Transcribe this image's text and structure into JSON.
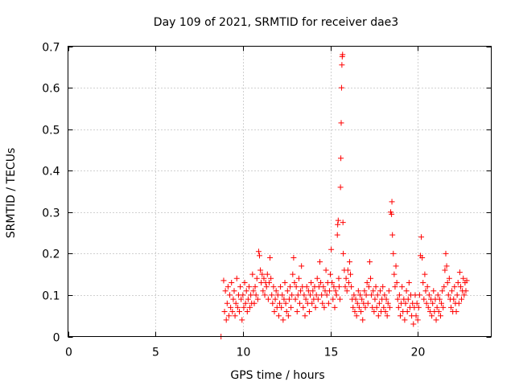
{
  "chart_data": {
    "type": "scatter",
    "title": "Day 109 of 2021, SRMTID for receiver dae3",
    "xlabel": "GPS time / hours",
    "ylabel": "SRMTID / TECUs",
    "xlim": [
      0,
      24.2
    ],
    "ylim": [
      0,
      0.7
    ],
    "x_ticks": [
      0,
      5,
      10,
      15,
      20
    ],
    "x_tick_labels": [
      "0",
      "5",
      "10",
      "15",
      "20"
    ],
    "y_ticks": [
      0,
      0.1,
      0.2,
      0.3,
      0.4,
      0.5,
      0.6,
      0.7
    ],
    "y_tick_labels": [
      "0",
      "0.1",
      "0.2",
      "0.3",
      "0.4",
      "0.5",
      "0.6",
      "0.7"
    ],
    "grid": true,
    "legend": "none",
    "marker": "+",
    "color": "#ff0000",
    "series": [
      {
        "name": "SRMTID",
        "points": [
          [
            8.75,
            0.0
          ],
          [
            8.9,
            0.135
          ],
          [
            8.95,
            0.06
          ],
          [
            9.0,
            0.11
          ],
          [
            9.05,
            0.04
          ],
          [
            9.1,
            0.08
          ],
          [
            9.15,
            0.12
          ],
          [
            9.2,
            0.05
          ],
          [
            9.25,
            0.1
          ],
          [
            9.3,
            0.07
          ],
          [
            9.35,
            0.13
          ],
          [
            9.4,
            0.06
          ],
          [
            9.45,
            0.09
          ],
          [
            9.5,
            0.11
          ],
          [
            9.55,
            0.05
          ],
          [
            9.6,
            0.08
          ],
          [
            9.65,
            0.14
          ],
          [
            9.7,
            0.07
          ],
          [
            9.75,
            0.1
          ],
          [
            9.8,
            0.06
          ],
          [
            9.85,
            0.12
          ],
          [
            9.9,
            0.09
          ],
          [
            9.95,
            0.04
          ],
          [
            10.0,
            0.1
          ],
          [
            10.05,
            0.07
          ],
          [
            10.1,
            0.13
          ],
          [
            10.15,
            0.08
          ],
          [
            10.2,
            0.11
          ],
          [
            10.25,
            0.06
          ],
          [
            10.3,
            0.09
          ],
          [
            10.35,
            0.12
          ],
          [
            10.4,
            0.07
          ],
          [
            10.45,
            0.1
          ],
          [
            10.5,
            0.08
          ],
          [
            10.55,
            0.15
          ],
          [
            10.6,
            0.11
          ],
          [
            10.65,
            0.08
          ],
          [
            10.7,
            0.12
          ],
          [
            10.75,
            0.1
          ],
          [
            10.8,
            0.14
          ],
          [
            10.85,
            0.09
          ],
          [
            10.9,
            0.205
          ],
          [
            10.95,
            0.195
          ],
          [
            11.0,
            0.16
          ],
          [
            11.05,
            0.13
          ],
          [
            11.1,
            0.15
          ],
          [
            11.15,
            0.11
          ],
          [
            11.2,
            0.14
          ],
          [
            11.25,
            0.1
          ],
          [
            11.3,
            0.13
          ],
          [
            11.35,
            0.12
          ],
          [
            11.4,
            0.15
          ],
          [
            11.45,
            0.09
          ],
          [
            11.5,
            0.13
          ],
          [
            11.55,
            0.19
          ],
          [
            11.6,
            0.14
          ],
          [
            11.65,
            0.1
          ],
          [
            11.7,
            0.08
          ],
          [
            11.75,
            0.12
          ],
          [
            11.8,
            0.06
          ],
          [
            11.85,
            0.09
          ],
          [
            11.9,
            0.11
          ],
          [
            11.95,
            0.07
          ],
          [
            12.0,
            0.1
          ],
          [
            12.05,
            0.05
          ],
          [
            12.1,
            0.08
          ],
          [
            12.15,
            0.12
          ],
          [
            12.2,
            0.07
          ],
          [
            12.25,
            0.1
          ],
          [
            12.3,
            0.04
          ],
          [
            12.35,
            0.09
          ],
          [
            12.4,
            0.13
          ],
          [
            12.45,
            0.08
          ],
          [
            12.5,
            0.06
          ],
          [
            12.55,
            0.11
          ],
          [
            12.6,
            0.05
          ],
          [
            12.65,
            0.09
          ],
          [
            12.7,
            0.12
          ],
          [
            12.75,
            0.07
          ],
          [
            12.8,
            0.1
          ],
          [
            12.85,
            0.15
          ],
          [
            12.9,
            0.19
          ],
          [
            12.95,
            0.13
          ],
          [
            13.0,
            0.09
          ],
          [
            13.05,
            0.12
          ],
          [
            13.1,
            0.06
          ],
          [
            13.15,
            0.1
          ],
          [
            13.2,
            0.14
          ],
          [
            13.25,
            0.08
          ],
          [
            13.3,
            0.11
          ],
          [
            13.35,
            0.17
          ],
          [
            13.4,
            0.12
          ],
          [
            13.45,
            0.07
          ],
          [
            13.5,
            0.1
          ],
          [
            13.55,
            0.05
          ],
          [
            13.6,
            0.09
          ],
          [
            13.65,
            0.12
          ],
          [
            13.7,
            0.08
          ],
          [
            13.75,
            0.11
          ],
          [
            13.8,
            0.06
          ],
          [
            13.85,
            0.1
          ],
          [
            13.9,
            0.13
          ],
          [
            13.95,
            0.08
          ],
          [
            14.0,
            0.11
          ],
          [
            14.05,
            0.09
          ],
          [
            14.1,
            0.12
          ],
          [
            14.15,
            0.07
          ],
          [
            14.2,
            0.1
          ],
          [
            14.25,
            0.14
          ],
          [
            14.3,
            0.09
          ],
          [
            14.35,
            0.12
          ],
          [
            14.4,
            0.18
          ],
          [
            14.45,
            0.13
          ],
          [
            14.5,
            0.1
          ],
          [
            14.55,
            0.08
          ],
          [
            14.6,
            0.12
          ],
          [
            14.65,
            0.07
          ],
          [
            14.7,
            0.11
          ],
          [
            14.75,
            0.16
          ],
          [
            14.8,
            0.1
          ],
          [
            14.85,
            0.13
          ],
          [
            14.9,
            0.08
          ],
          [
            14.95,
            0.11
          ],
          [
            15.0,
            0.15
          ],
          [
            15.05,
            0.21
          ],
          [
            15.1,
            0.13
          ],
          [
            15.15,
            0.09
          ],
          [
            15.2,
            0.12
          ],
          [
            15.25,
            0.07
          ],
          [
            15.3,
            0.11
          ],
          [
            15.35,
            0.1
          ],
          [
            15.4,
            0.245
          ],
          [
            15.42,
            0.27
          ],
          [
            15.45,
            0.28
          ],
          [
            15.48,
            0.14
          ],
          [
            15.5,
            0.12
          ],
          [
            15.55,
            0.09
          ],
          [
            15.58,
            0.36
          ],
          [
            15.6,
            0.43
          ],
          [
            15.62,
            0.515
          ],
          [
            15.64,
            0.6
          ],
          [
            15.66,
            0.655
          ],
          [
            15.68,
            0.675
          ],
          [
            15.7,
            0.68
          ],
          [
            15.72,
            0.275
          ],
          [
            15.74,
            0.2
          ],
          [
            15.8,
            0.16
          ],
          [
            15.85,
            0.12
          ],
          [
            15.9,
            0.14
          ],
          [
            15.95,
            0.11
          ],
          [
            16.0,
            0.16
          ],
          [
            16.05,
            0.13
          ],
          [
            16.1,
            0.18
          ],
          [
            16.15,
            0.15
          ],
          [
            16.2,
            0.12
          ],
          [
            16.25,
            0.09
          ],
          [
            16.3,
            0.07
          ],
          [
            16.35,
            0.1
          ],
          [
            16.4,
            0.06
          ],
          [
            16.45,
            0.09
          ],
          [
            16.5,
            0.05
          ],
          [
            16.55,
            0.08
          ],
          [
            16.6,
            0.11
          ],
          [
            16.65,
            0.07
          ],
          [
            16.7,
            0.1
          ],
          [
            16.75,
            0.06
          ],
          [
            16.8,
            0.09
          ],
          [
            16.85,
            0.04
          ],
          [
            16.9,
            0.08
          ],
          [
            16.95,
            0.11
          ],
          [
            17.0,
            0.07
          ],
          [
            17.05,
            0.1
          ],
          [
            17.1,
            0.13
          ],
          [
            17.15,
            0.08
          ],
          [
            17.2,
            0.12
          ],
          [
            17.25,
            0.18
          ],
          [
            17.3,
            0.14
          ],
          [
            17.35,
            0.1
          ],
          [
            17.4,
            0.07
          ],
          [
            17.45,
            0.11
          ],
          [
            17.5,
            0.06
          ],
          [
            17.55,
            0.09
          ],
          [
            17.6,
            0.12
          ],
          [
            17.65,
            0.07
          ],
          [
            17.7,
            0.1
          ],
          [
            17.75,
            0.05
          ],
          [
            17.8,
            0.08
          ],
          [
            17.85,
            0.11
          ],
          [
            17.9,
            0.06
          ],
          [
            17.95,
            0.09
          ],
          [
            18.0,
            0.12
          ],
          [
            18.05,
            0.07
          ],
          [
            18.1,
            0.1
          ],
          [
            18.15,
            0.06
          ],
          [
            18.2,
            0.09
          ],
          [
            18.25,
            0.05
          ],
          [
            18.3,
            0.08
          ],
          [
            18.35,
            0.11
          ],
          [
            18.4,
            0.07
          ],
          [
            18.45,
            0.3
          ],
          [
            18.5,
            0.295
          ],
          [
            18.52,
            0.325
          ],
          [
            18.55,
            0.245
          ],
          [
            18.6,
            0.2
          ],
          [
            18.65,
            0.15
          ],
          [
            18.7,
            0.12
          ],
          [
            18.75,
            0.17
          ],
          [
            18.8,
            0.13
          ],
          [
            18.85,
            0.09
          ],
          [
            18.9,
            0.07
          ],
          [
            18.95,
            0.1
          ],
          [
            19.0,
            0.05
          ],
          [
            19.05,
            0.08
          ],
          [
            19.1,
            0.12
          ],
          [
            19.15,
            0.06
          ],
          [
            19.2,
            0.09
          ],
          [
            19.25,
            0.04
          ],
          [
            19.3,
            0.08
          ],
          [
            19.35,
            0.11
          ],
          [
            19.4,
            0.06
          ],
          [
            19.45,
            0.09
          ],
          [
            19.5,
            0.13
          ],
          [
            19.55,
            0.07
          ],
          [
            19.6,
            0.1
          ],
          [
            19.65,
            0.05
          ],
          [
            19.7,
            0.08
          ],
          [
            19.75,
            0.03
          ],
          [
            19.8,
            0.07
          ],
          [
            19.85,
            0.1
          ],
          [
            19.9,
            0.05
          ],
          [
            19.95,
            0.08
          ],
          [
            20.0,
            0.04
          ],
          [
            20.05,
            0.07
          ],
          [
            20.1,
            0.1
          ],
          [
            20.15,
            0.195
          ],
          [
            20.2,
            0.24
          ],
          [
            20.25,
            0.19
          ],
          [
            20.3,
            0.13
          ],
          [
            20.35,
            0.09
          ],
          [
            20.4,
            0.15
          ],
          [
            20.45,
            0.11
          ],
          [
            20.5,
            0.08
          ],
          [
            20.55,
            0.12
          ],
          [
            20.6,
            0.07
          ],
          [
            20.65,
            0.1
          ],
          [
            20.7,
            0.06
          ],
          [
            20.75,
            0.09
          ],
          [
            20.8,
            0.05
          ],
          [
            20.85,
            0.08
          ],
          [
            20.9,
            0.11
          ],
          [
            20.95,
            0.06
          ],
          [
            21.0,
            0.09
          ],
          [
            21.05,
            0.04
          ],
          [
            21.1,
            0.07
          ],
          [
            21.15,
            0.1
          ],
          [
            21.2,
            0.06
          ],
          [
            21.25,
            0.09
          ],
          [
            21.3,
            0.05
          ],
          [
            21.35,
            0.08
          ],
          [
            21.4,
            0.11
          ],
          [
            21.45,
            0.07
          ],
          [
            21.5,
            0.12
          ],
          [
            21.55,
            0.16
          ],
          [
            21.6,
            0.2
          ],
          [
            21.65,
            0.17
          ],
          [
            21.7,
            0.13
          ],
          [
            21.75,
            0.1
          ],
          [
            21.8,
            0.14
          ],
          [
            21.85,
            0.09
          ],
          [
            21.9,
            0.07
          ],
          [
            21.95,
            0.11
          ],
          [
            22.0,
            0.06
          ],
          [
            22.05,
            0.09
          ],
          [
            22.1,
            0.12
          ],
          [
            22.15,
            0.08
          ],
          [
            22.2,
            0.06
          ],
          [
            22.25,
            0.1
          ],
          [
            22.3,
            0.13
          ],
          [
            22.35,
            0.08
          ],
          [
            22.4,
            0.155
          ],
          [
            22.45,
            0.12
          ],
          [
            22.5,
            0.09
          ],
          [
            22.55,
            0.11
          ],
          [
            22.6,
            0.14
          ],
          [
            22.65,
            0.1
          ],
          [
            22.7,
            0.13
          ],
          [
            22.75,
            0.11
          ],
          [
            22.8,
            0.135
          ]
        ]
      }
    ]
  }
}
